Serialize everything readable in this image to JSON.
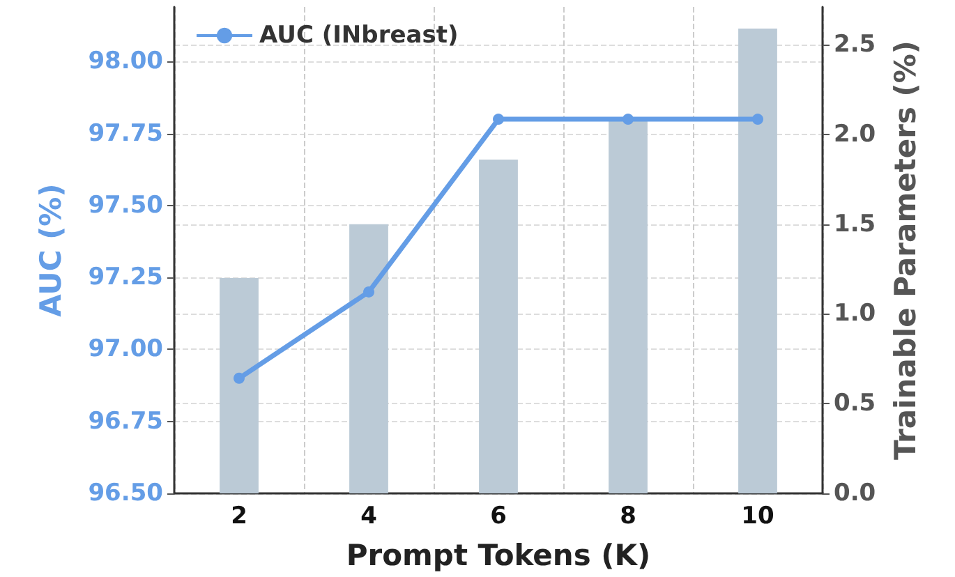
{
  "chart_data": {
    "type": "bar",
    "xlabel": "Prompt Tokens (K)",
    "ylabel": "AUC (%)",
    "y2label": "Trainable Parameters (%)",
    "categories": [
      "2",
      "4",
      "6",
      "8",
      "10"
    ],
    "series": [
      {
        "axis": "y2",
        "color": "#bbcad6",
        "values": [
          1.2,
          1.5,
          1.86,
          2.09,
          2.59
        ]
      },
      {
        "type": "line",
        "name": "AUC (INbreast)",
        "color": "#649de6",
        "values": [
          96.9,
          97.2,
          97.8,
          97.8,
          97.8
        ]
      }
    ],
    "ylim": [
      96.5,
      98.19
    ],
    "yticks": [
      {
        "value": 96.5,
        "label": "96.50"
      },
      96.75,
      {
        "value": 97,
        "label": "97.00"
      },
      97.25,
      {
        "value": 97.5,
        "label": "97.50"
      },
      97.75,
      {
        "value": 98,
        "label": "98.00"
      }
    ],
    "y2lim": [
      0,
      2.71
    ],
    "y2ticks": [
      {
        "value": 0,
        "label": "0.0"
      },
      0.5,
      {
        "value": 1,
        "label": "1.0"
      },
      1.5,
      {
        "value": 2,
        "label": "2.0"
      },
      2.5
    ],
    "grid": true,
    "legend": "top left",
    "marker": "circle",
    "line_style": "solid"
  }
}
